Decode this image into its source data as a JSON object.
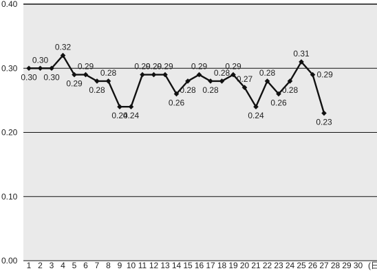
{
  "chart_data": {
    "type": "line",
    "title": "",
    "xlabel": "",
    "ylabel": "",
    "x_unit_label": "(日)",
    "y_tick_labels": [
      "0.00",
      "0.10",
      "0.20",
      "0.30",
      "0.40"
    ],
    "y_ticks": [
      0.0,
      0.1,
      0.2,
      0.3,
      0.4
    ],
    "ylim": [
      0.0,
      0.4
    ],
    "x_tick_labels": [
      "1",
      "2",
      "3",
      "4",
      "5",
      "6",
      "7",
      "8",
      "9",
      "10",
      "11",
      "12",
      "13",
      "14",
      "15",
      "16",
      "17",
      "18",
      "19",
      "20",
      "21",
      "22",
      "23",
      "24",
      "25",
      "26",
      "27",
      "28",
      "29",
      "30"
    ],
    "x": [
      1,
      2,
      3,
      4,
      5,
      6,
      7,
      8,
      9,
      10,
      11,
      12,
      13,
      14,
      15,
      16,
      17,
      18,
      19,
      20,
      21,
      22,
      23,
      24,
      25,
      26,
      27
    ],
    "series": [
      {
        "values": [
          0.3,
          0.3,
          0.3,
          0.32,
          0.29,
          0.29,
          0.28,
          0.28,
          0.24,
          0.24,
          0.29,
          0.29,
          0.29,
          0.26,
          0.28,
          0.29,
          0.28,
          0.28,
          0.29,
          0.27,
          0.24,
          0.28,
          0.26,
          0.28,
          0.31,
          0.29,
          0.23
        ],
        "labels": [
          "0.30",
          "0.30",
          "0.30",
          "0.32",
          "0.29",
          "0.29",
          "0.28",
          "0.28",
          "0.24",
          "0.24",
          "0.29",
          "0.29",
          "0.29",
          "0.26",
          "0.28",
          "0.29",
          "0.28",
          "0.28",
          "0.29",
          "0.27",
          "0.24",
          "0.28",
          "0.26",
          "0.28",
          "0.31",
          "0.29",
          "0.23"
        ],
        "label_positions": [
          "below",
          "above",
          "below",
          "above",
          "below",
          "above",
          "below",
          "above",
          "below",
          "below",
          "above",
          "above",
          "above",
          "below",
          "below",
          "above",
          "below",
          "above",
          "above",
          "above",
          "below",
          "above",
          "below",
          "below",
          "above",
          "right",
          "below"
        ],
        "color": "#111111"
      }
    ],
    "grid": true,
    "plot_background": "#eaeaea",
    "gridline_color": "#111111",
    "legend": "none"
  }
}
